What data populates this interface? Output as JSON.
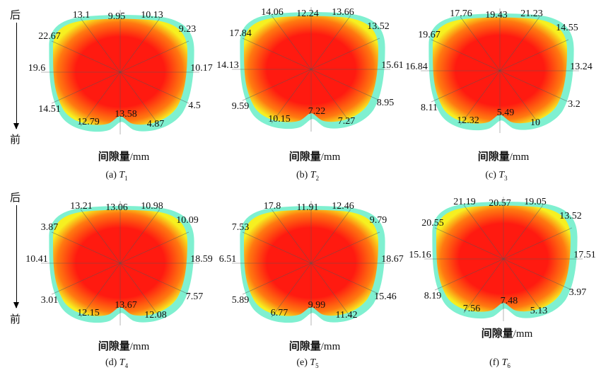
{
  "direction": {
    "back": "后",
    "front": "前"
  },
  "axis_label": {
    "text": "间隙量",
    "unit": "/mm"
  },
  "colors": {
    "outer": "#7ff0d0",
    "center": "#ff1a10",
    "mid": "#ff7a10",
    "edge": "#f6f020"
  },
  "panels": [
    {
      "caption_prefix": "(a) ",
      "var": "T",
      "sub": "1",
      "values": [
        "9.95",
        "10.13",
        "9.23",
        "10.17",
        "4.5",
        "4.87",
        "13.58",
        "12.79",
        "14.51",
        "19.6",
        "22.67",
        "13.1"
      ]
    },
    {
      "caption_prefix": "(b) ",
      "var": "T",
      "sub": "2",
      "values": [
        "12.24",
        "13.66",
        "13.52",
        "15.61",
        "8.95",
        "7.27",
        "7.22",
        "10.15",
        "9.59",
        "14.13",
        "17.84",
        "14.06"
      ]
    },
    {
      "caption_prefix": "(c) ",
      "var": "T",
      "sub": "3",
      "values": [
        "19.43",
        "21.23",
        "14.55",
        "13.24",
        "3.2",
        "10",
        "5.49",
        "12.32",
        "8.11",
        "16.84",
        "19.67",
        "17.76"
      ]
    },
    {
      "caption_prefix": "(d) ",
      "var": "T",
      "sub": "4",
      "values": [
        "13.06",
        "10.98",
        "10.09",
        "18.59",
        "7.57",
        "12.08",
        "13.67",
        "12.15",
        "3.01",
        "10.41",
        "3.87",
        "13.21"
      ]
    },
    {
      "caption_prefix": "(e) ",
      "var": "T",
      "sub": "5",
      "values": [
        "11.91",
        "12.46",
        "9.79",
        "18.67",
        "15.46",
        "11.42",
        "9.99",
        "6.77",
        "5.89",
        "6.51",
        "7.53",
        "17.8"
      ]
    },
    {
      "caption_prefix": "(f) ",
      "var": "T",
      "sub": "6",
      "values": [
        "20.57",
        "19.05",
        "13.52",
        "17.51",
        "3.97",
        "5.13",
        "7.48",
        "7.56",
        "8.19",
        "15.16",
        "20.55",
        "21.19"
      ]
    }
  ]
}
